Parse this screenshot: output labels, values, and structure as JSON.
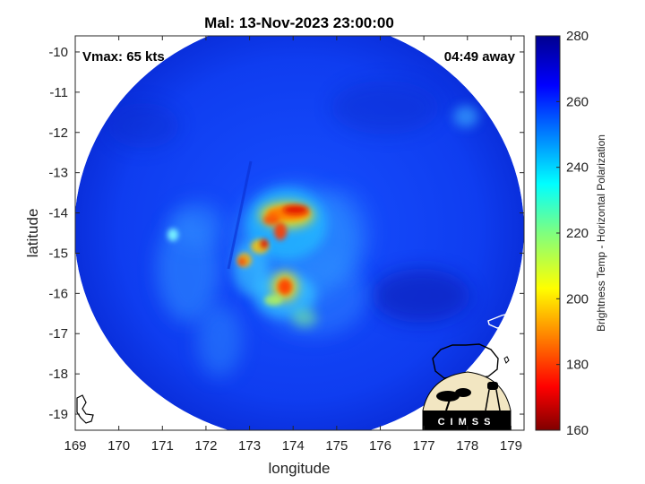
{
  "title": "Mal: 13-Nov-2023 23:00:00",
  "vmax_text": "Vmax: 65 kts",
  "away_text": "04:49 away",
  "xlabel": "longitude",
  "ylabel": "latitude",
  "colorbar_label": "Brightness Temp - Horizontal Polarization",
  "logo_text": "CIMSS",
  "x_ticks": [
    "169",
    "170",
    "171",
    "172",
    "173",
    "174",
    "175",
    "176",
    "177",
    "178",
    "179"
  ],
  "y_ticks": [
    "-10",
    "-11",
    "-12",
    "-13",
    "-14",
    "-15",
    "-16",
    "-17",
    "-18",
    "-19"
  ],
  "colorbar_ticks": [
    "280",
    "260",
    "240",
    "220",
    "200",
    "180",
    "160"
  ],
  "chart_data": {
    "type": "heatmap",
    "title": "Mal: 13-Nov-2023 23:00:00",
    "xlabel": "longitude",
    "ylabel": "latitude",
    "xlim": [
      169,
      179.3
    ],
    "ylim": [
      -19.4,
      -9.6
    ],
    "clim": [
      160,
      280
    ],
    "colormap": "jet",
    "colorbar_label": "Brightness Temp - Horizontal Polarization",
    "background_value": 262,
    "features": [
      {
        "name": "eyewall-north",
        "lon": 174.0,
        "lat": -14.0,
        "value": 178
      },
      {
        "name": "band-northwest",
        "lon": 173.4,
        "lat": -14.2,
        "value": 195
      },
      {
        "name": "band-west",
        "lon": 172.9,
        "lat": -15.0,
        "value": 200
      },
      {
        "name": "band-center-west",
        "lon": 173.2,
        "lat": -14.7,
        "value": 185
      },
      {
        "name": "eyewall-south",
        "lon": 173.9,
        "lat": -15.8,
        "value": 180
      },
      {
        "name": "band-south",
        "lon": 173.7,
        "lat": -16.3,
        "value": 205
      },
      {
        "name": "spiral-band-southwest",
        "lon": 172.5,
        "lat": -16.5,
        "value": 230
      },
      {
        "name": "outer-band-west",
        "lon": 171.2,
        "lat": -14.9,
        "value": 232
      }
    ]
  }
}
